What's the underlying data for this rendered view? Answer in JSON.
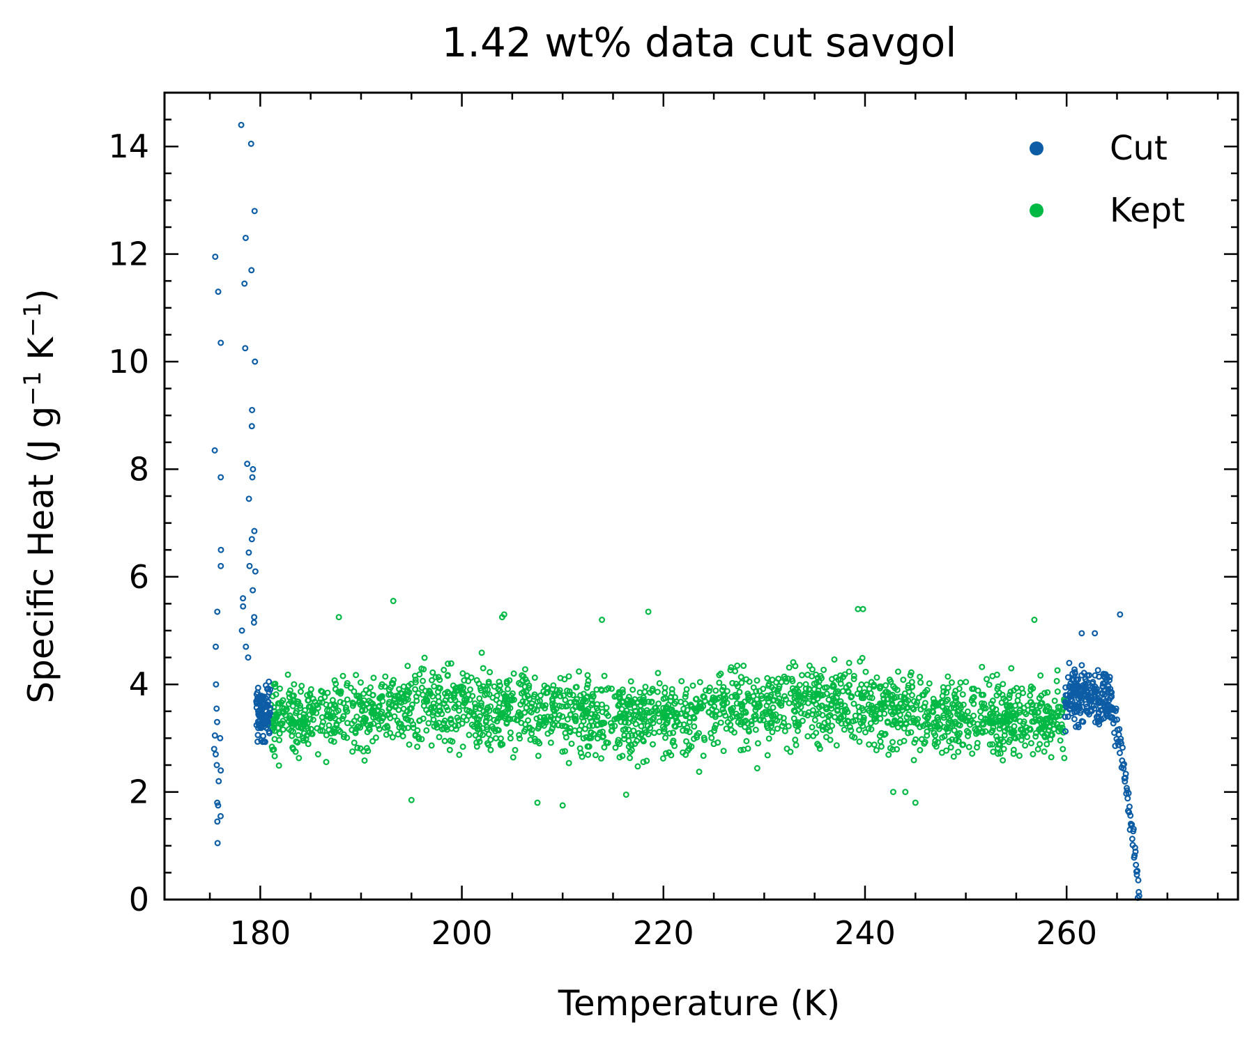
{
  "chart_data": {
    "type": "scatter",
    "title": "1.42 wt% data cut savgol",
    "xlabel": "Temperature (K)",
    "ylabel_main": "Specific Heat (J g",
    "ylabel_sup1": "−1",
    "ylabel_mid": " K",
    "ylabel_sup2": "−1",
    "ylabel_end": ")",
    "xlim": [
      170.5,
      277
    ],
    "ylim": [
      0,
      15
    ],
    "xticks": [
      180,
      200,
      220,
      240,
      260
    ],
    "xtick_labels": [
      "180",
      "200",
      "220",
      "240",
      "260"
    ],
    "yticks": [
      0,
      2,
      4,
      6,
      8,
      10,
      12,
      14
    ],
    "ytick_labels": [
      "0",
      "2",
      "4",
      "6",
      "8",
      "10",
      "12",
      "14"
    ],
    "x_minor_step": 5,
    "y_minor_step": 0.5,
    "grid": false,
    "legend_position": "top-right",
    "kept_range": [
      181.0,
      259.8
    ],
    "kept_mean": 3.5,
    "kept_spread": 0.9,
    "kept_count": 2200,
    "series": [
      {
        "name": "Cut",
        "color": "#0C5DA5",
        "description_segments": [
          {
            "x_range": [
              175.4,
              176.1
            ],
            "y_values": [
              1.05,
              1.45,
              1.55,
              1.75,
              1.8,
              2.2,
              2.4,
              2.5,
              2.7,
              2.8,
              3.0,
              3.05,
              3.3,
              3.55,
              4.0,
              4.7,
              5.35,
              6.2,
              6.5,
              7.85,
              8.35,
              10.35,
              11.3,
              11.95
            ]
          },
          {
            "x_range": [
              178.1,
              179.6
            ],
            "y_values": [
              14.4,
              14.05,
              12.8,
              12.3,
              11.7,
              11.45,
              10.25,
              10.0,
              9.1,
              8.8,
              8.1,
              8.0,
              7.85,
              7.45,
              6.85,
              6.7,
              6.45,
              6.2,
              6.1,
              5.75,
              5.6,
              5.45,
              5.25,
              5.15,
              5.0,
              4.7,
              4.5
            ]
          },
          {
            "x_range": [
              179.6,
              181.0
            ],
            "y_mean": 3.5,
            "y_spread": 0.8,
            "count": 90
          },
          {
            "x_range": [
              259.8,
              264.5
            ],
            "y_mean": 3.8,
            "y_spread": 0.7,
            "count": 220
          },
          {
            "x_range": [
              264.5,
              267.2
            ],
            "y_descending_from": 3.5,
            "y_descending_to": 0.0,
            "count": 60
          }
        ],
        "extra_points": [
          [
            265.3,
            5.3
          ],
          [
            261.5,
            4.95
          ],
          [
            262.8,
            4.95
          ]
        ]
      },
      {
        "name": "Kept",
        "color": "#00B945",
        "outliers": [
          [
            193.2,
            5.55
          ],
          [
            187.8,
            5.25
          ],
          [
            204.2,
            5.3
          ],
          [
            204.0,
            5.25
          ],
          [
            213.9,
            5.2
          ],
          [
            218.5,
            5.35
          ],
          [
            239.3,
            5.4
          ],
          [
            239.8,
            5.4
          ],
          [
            256.8,
            5.2
          ],
          [
            195.0,
            1.85
          ],
          [
            207.5,
            1.8
          ],
          [
            210.0,
            1.75
          ],
          [
            244.0,
            2.0
          ],
          [
            245.0,
            1.8
          ],
          [
            216.3,
            1.95
          ],
          [
            242.8,
            2.0
          ]
        ]
      }
    ]
  }
}
